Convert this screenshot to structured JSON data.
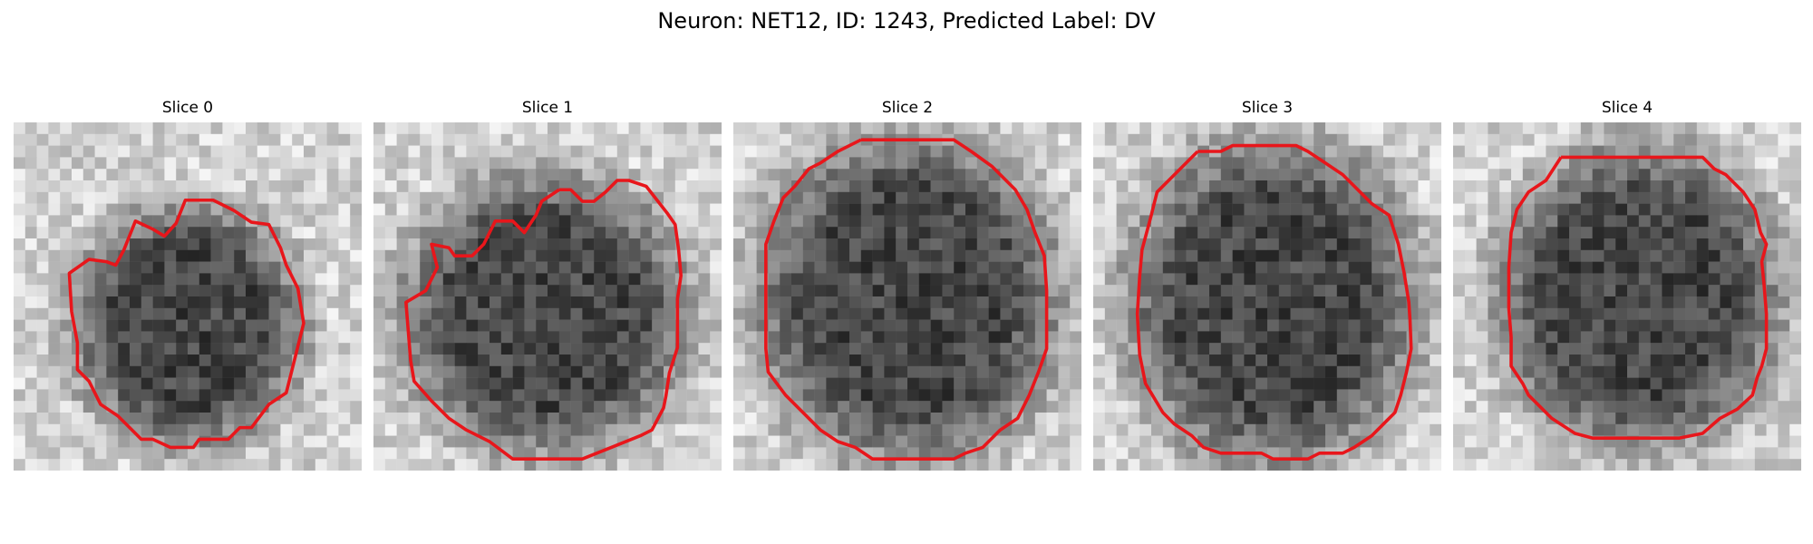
{
  "figure": {
    "title": "Neuron: NET12, ID: 1243, Predicted Label: DV"
  },
  "colors": {
    "contour": "#e8161b",
    "background": "#ffffff"
  },
  "image_grid": {
    "pixels_per_side": 30
  },
  "panels": [
    {
      "title": "Slice 0"
    },
    {
      "title": "Slice 1"
    },
    {
      "title": "Slice 2"
    },
    {
      "title": "Slice 3"
    },
    {
      "title": "Slice 4"
    }
  ]
}
